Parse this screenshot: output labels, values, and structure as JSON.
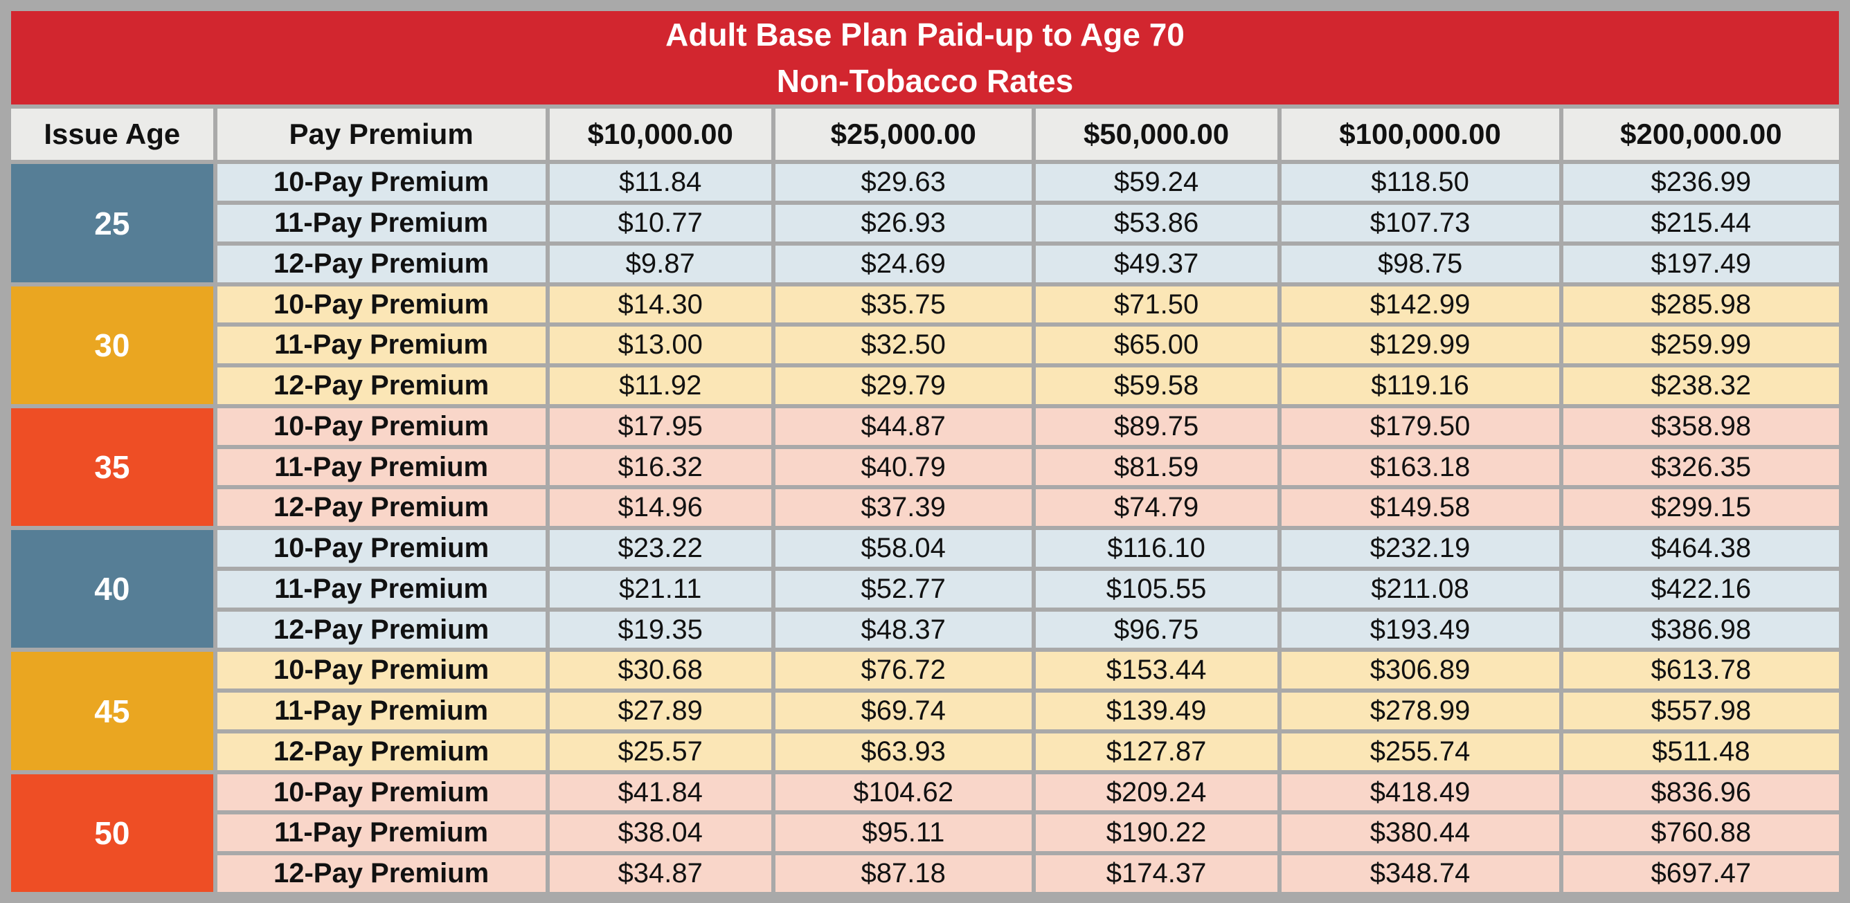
{
  "title": {
    "line1": "Adult Base Plan Paid-up to Age 70",
    "line2": "Non-Tobacco Rates"
  },
  "columns": [
    "Issue Age",
    "Pay Premium",
    "$10,000.00",
    "$25,000.00",
    "$50,000.00",
    "$100,000.00",
    "$200,000.00"
  ],
  "colors": {
    "title_bar": "#d2262f",
    "header_bg": "#ebebe9",
    "frame_gray": "#a9a9a9",
    "age_blue": "#567e96",
    "age_gold": "#eaa621",
    "age_orange_red": "#ee4e25",
    "row_light_blue": "#dce7ed",
    "row_light_yellow": "#fbe6b6",
    "row_light_pink": "#f9d6c9"
  },
  "age_groups": [
    {
      "age": "25",
      "theme": "blue",
      "rows": [
        {
          "label": "10-Pay Premium",
          "values": [
            "$11.84",
            "$29.63",
            "$59.24",
            "$118.50",
            "$236.99"
          ]
        },
        {
          "label": "11-Pay Premium",
          "values": [
            "$10.77",
            "$26.93",
            "$53.86",
            "$107.73",
            "$215.44"
          ]
        },
        {
          "label": "12-Pay Premium",
          "values": [
            "$9.87",
            "$24.69",
            "$49.37",
            "$98.75",
            "$197.49"
          ]
        }
      ]
    },
    {
      "age": "30",
      "theme": "gold",
      "rows": [
        {
          "label": "10-Pay Premium",
          "values": [
            "$14.30",
            "$35.75",
            "$71.50",
            "$142.99",
            "$285.98"
          ]
        },
        {
          "label": "11-Pay Premium",
          "values": [
            "$13.00",
            "$32.50",
            "$65.00",
            "$129.99",
            "$259.99"
          ]
        },
        {
          "label": "12-Pay Premium",
          "values": [
            "$11.92",
            "$29.79",
            "$59.58",
            "$119.16",
            "$238.32"
          ]
        }
      ]
    },
    {
      "age": "35",
      "theme": "red",
      "rows": [
        {
          "label": "10-Pay Premium",
          "values": [
            "$17.95",
            "$44.87",
            "$89.75",
            "$179.50",
            "$358.98"
          ]
        },
        {
          "label": "11-Pay Premium",
          "values": [
            "$16.32",
            "$40.79",
            "$81.59",
            "$163.18",
            "$326.35"
          ]
        },
        {
          "label": "12-Pay Premium",
          "values": [
            "$14.96",
            "$37.39",
            "$74.79",
            "$149.58",
            "$299.15"
          ]
        }
      ]
    },
    {
      "age": "40",
      "theme": "blue",
      "rows": [
        {
          "label": "10-Pay Premium",
          "values": [
            "$23.22",
            "$58.04",
            "$116.10",
            "$232.19",
            "$464.38"
          ]
        },
        {
          "label": "11-Pay Premium",
          "values": [
            "$21.11",
            "$52.77",
            "$105.55",
            "$211.08",
            "$422.16"
          ]
        },
        {
          "label": "12-Pay Premium",
          "values": [
            "$19.35",
            "$48.37",
            "$96.75",
            "$193.49",
            "$386.98"
          ]
        }
      ]
    },
    {
      "age": "45",
      "theme": "gold",
      "rows": [
        {
          "label": "10-Pay Premium",
          "values": [
            "$30.68",
            "$76.72",
            "$153.44",
            "$306.89",
            "$613.78"
          ]
        },
        {
          "label": "11-Pay Premium",
          "values": [
            "$27.89",
            "$69.74",
            "$139.49",
            "$278.99",
            "$557.98"
          ]
        },
        {
          "label": "12-Pay Premium",
          "values": [
            "$25.57",
            "$63.93",
            "$127.87",
            "$255.74",
            "$511.48"
          ]
        }
      ]
    },
    {
      "age": "50",
      "theme": "red",
      "rows": [
        {
          "label": "10-Pay Premium",
          "values": [
            "$41.84",
            "$104.62",
            "$209.24",
            "$418.49",
            "$836.96"
          ]
        },
        {
          "label": "11-Pay Premium",
          "values": [
            "$38.04",
            "$95.11",
            "$190.22",
            "$380.44",
            "$760.88"
          ]
        },
        {
          "label": "12-Pay Premium",
          "values": [
            "$34.87",
            "$87.18",
            "$174.37",
            "$348.74",
            "$697.47"
          ]
        }
      ]
    }
  ]
}
